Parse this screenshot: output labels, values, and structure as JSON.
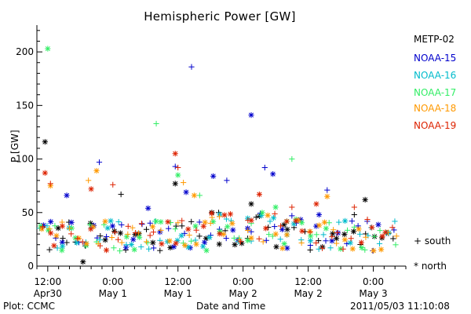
{
  "chart_data": {
    "type": "scatter",
    "title": "Hemispheric Power [GW]",
    "xlabel": "Date and Time",
    "ylabel": "P [GW]",
    "ylim": [
      0,
      225
    ],
    "xlim_hours": [
      -2,
      66
    ],
    "y_ticks": [
      0,
      50,
      100,
      150,
      200
    ],
    "x_ticks": [
      {
        "top": "12:00",
        "bottom": "Apr30"
      },
      {
        "top": "0:00",
        "bottom": "May 1"
      },
      {
        "top": "12:00",
        "bottom": "May 1"
      },
      {
        "top": "0:00",
        "bottom": "May 2"
      },
      {
        "top": "12:00",
        "bottom": "May 2"
      },
      {
        "top": "0:00",
        "bottom": "May 3"
      }
    ],
    "x_tick_hours": [
      0,
      12,
      24,
      36,
      48,
      60
    ],
    "series": [
      {
        "name": "METP-02",
        "color": "#000000",
        "seed": 1,
        "points": [
          [
            -0.5,
            116
          ],
          [
            3.5,
            22
          ],
          [
            6.5,
            4
          ],
          [
            13.5,
            67
          ],
          [
            23.5,
            77
          ],
          [
            31.5,
            50
          ],
          [
            37.5,
            58
          ],
          [
            56.5,
            48
          ],
          [
            58.5,
            62
          ]
        ]
      },
      {
        "name": "NOAA-15",
        "color": "#0000cc",
        "seed": 2,
        "points": [
          [
            3.5,
            66
          ],
          [
            9.5,
            97
          ],
          [
            18.5,
            54
          ],
          [
            23.5,
            93
          ],
          [
            25.5,
            69
          ],
          [
            26.5,
            186
          ],
          [
            30.5,
            84
          ],
          [
            33.0,
            80
          ],
          [
            37.5,
            141
          ],
          [
            40.0,
            92
          ],
          [
            41.5,
            86
          ],
          [
            45.0,
            47
          ],
          [
            50.0,
            48
          ],
          [
            51.5,
            71
          ]
        ]
      },
      {
        "name": "NOAA-16",
        "color": "#00bbcc",
        "seed": 3
      },
      {
        "name": "NOAA-17",
        "color": "#33ee66",
        "seed": 4,
        "points": [
          [
            0.0,
            203
          ],
          [
            20.0,
            133
          ],
          [
            24.0,
            85
          ],
          [
            28.0,
            66
          ],
          [
            42.0,
            55
          ],
          [
            45.0,
            100
          ]
        ]
      },
      {
        "name": "NOAA-18",
        "color": "#ff9900",
        "seed": 5,
        "points": [
          [
            0.5,
            75
          ],
          [
            7.5,
            80
          ],
          [
            9.0,
            89
          ],
          [
            25.0,
            78
          ],
          [
            27.0,
            66
          ],
          [
            30.0,
            40
          ],
          [
            51.5,
            65
          ]
        ]
      },
      {
        "name": "NOAA-19",
        "color": "#dd2200",
        "seed": 6,
        "points": [
          [
            -0.5,
            87
          ],
          [
            0.5,
            77
          ],
          [
            8.0,
            72
          ],
          [
            12.0,
            76
          ],
          [
            23.5,
            105
          ],
          [
            24.0,
            92
          ],
          [
            39.0,
            67
          ],
          [
            45.0,
            55
          ],
          [
            49.5,
            58
          ],
          [
            56.5,
            55
          ]
        ]
      }
    ],
    "marker_legend": [
      {
        "symbol": "+",
        "label": "south"
      },
      {
        "symbol": "*",
        "label": "north"
      }
    ]
  },
  "footer": {
    "plot_credit": "Plot: CCMC",
    "timestamp": "2011/05/03 11:10:08"
  }
}
